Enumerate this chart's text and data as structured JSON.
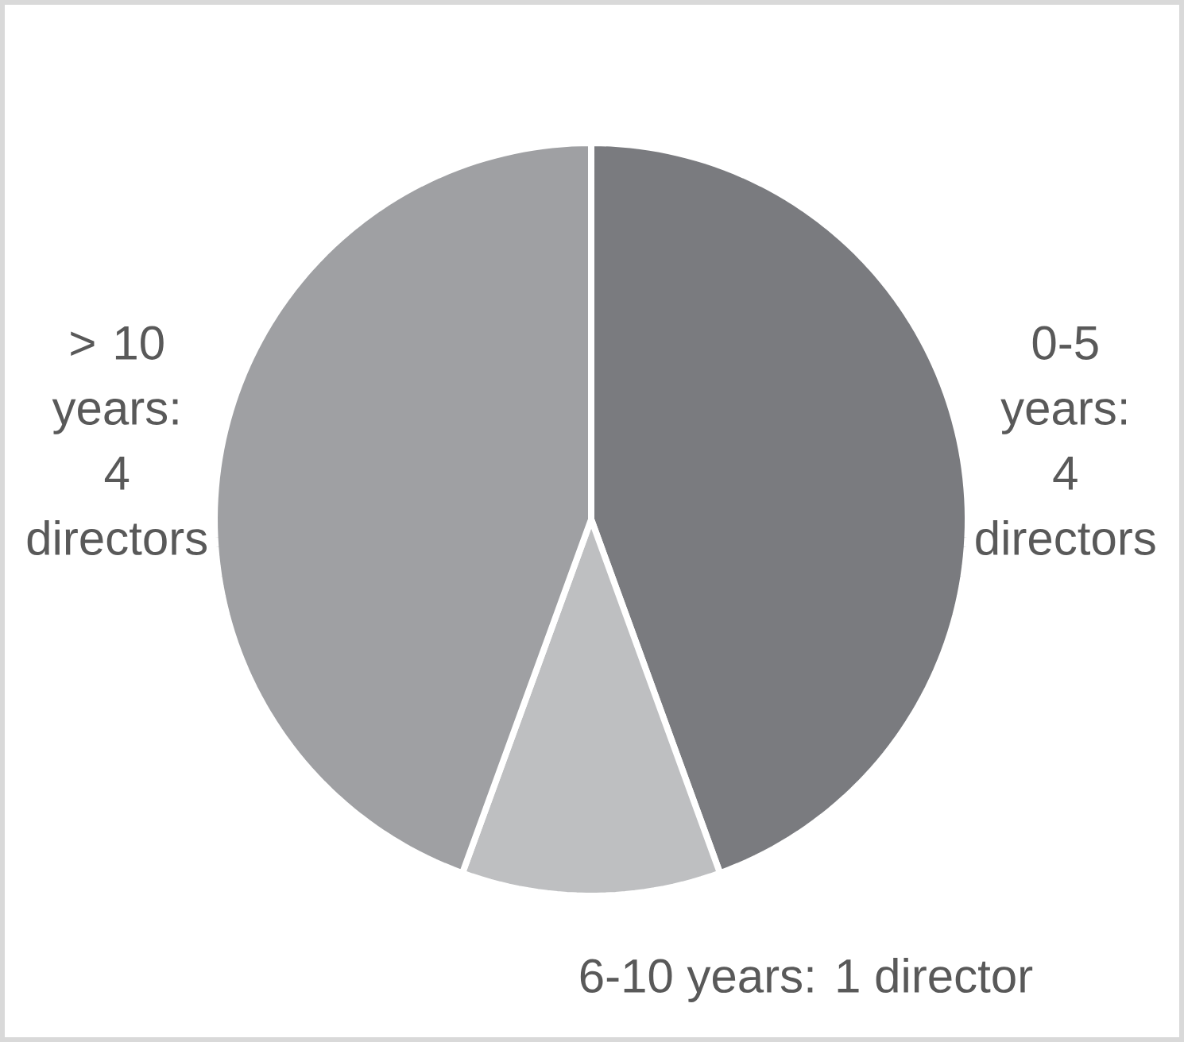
{
  "chart_data": {
    "type": "pie",
    "categories": [
      "0-5 years: 4 directors",
      "6-10 years: 1 director",
      "> 10 years: 4 directors"
    ],
    "values": [
      4,
      1,
      4
    ],
    "colors": [
      "#7a7b7f",
      "#bebfc1",
      "#9fa0a3"
    ]
  }
}
